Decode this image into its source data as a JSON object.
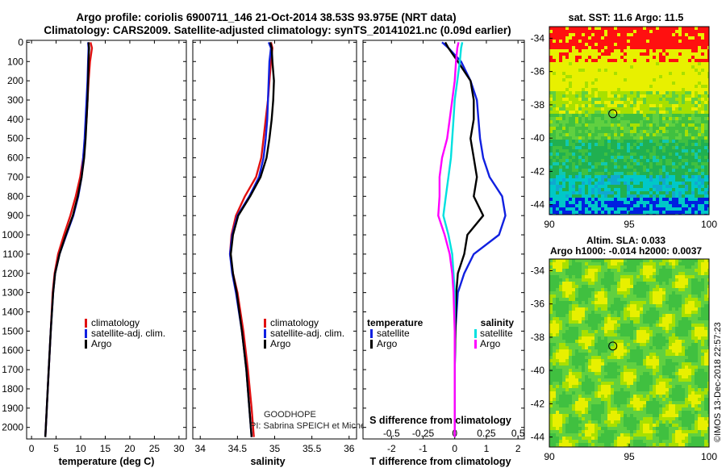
{
  "header": {
    "title_line1": "Argo profile: coriolis 6900711_146 21-Oct-2014 38.53S 93.975E (NRT data)",
    "title_line2": "Climatology: CARS2009. Satellite-adjusted climatology: synTS_20141021.nc (0.09d earlier)"
  },
  "colors": {
    "climatology": "#e01010",
    "satellite": "#1020e0",
    "argo": "#000000",
    "salinity_satellite": "#00e0e0",
    "salinity_argo": "#ff00ff"
  },
  "chart_data": [
    {
      "type": "line",
      "panel": "temperature",
      "xlabel": "temperature (deg C)",
      "ylabel": "",
      "xlim": [
        -1,
        31.5
      ],
      "ylim": [
        2060,
        -10
      ],
      "xticks": [
        "0",
        "5",
        "10",
        "15",
        "20",
        "25",
        "30"
      ],
      "yticks": [
        "0",
        "100",
        "200",
        "300",
        "400",
        "500",
        "600",
        "700",
        "800",
        "900",
        "1000",
        "1100",
        "1200",
        "1300",
        "1400",
        "1500",
        "1600",
        "1700",
        "1800",
        "1900",
        "2000"
      ],
      "depth": [
        0,
        30,
        100,
        200,
        300,
        400,
        500,
        600,
        700,
        800,
        900,
        1000,
        1100,
        1200,
        1300,
        1500,
        1700,
        1900,
        2050
      ],
      "series": [
        {
          "name": "climatology",
          "values": [
            12.0,
            12.3,
            11.9,
            11.6,
            11.4,
            11.2,
            10.9,
            10.5,
            9.9,
            9.0,
            7.9,
            6.6,
            5.4,
            4.7,
            4.3,
            3.9,
            3.5,
            3.1,
            2.8
          ]
        },
        {
          "name": "satellite-adj. clim.",
          "values": [
            11.5,
            11.6,
            11.5,
            11.4,
            11.2,
            11.0,
            10.8,
            10.5,
            10.2,
            9.5,
            8.5,
            7.1,
            5.7,
            4.8,
            4.4,
            3.9,
            3.5,
            3.1,
            2.8
          ]
        },
        {
          "name": "Argo",
          "values": [
            11.6,
            11.7,
            11.6,
            11.5,
            11.4,
            11.2,
            11.0,
            10.7,
            10.2,
            9.4,
            8.4,
            7.0,
            5.7,
            4.8,
            4.4,
            3.9,
            3.5,
            3.1,
            2.8
          ]
        }
      ],
      "legend": [
        "climatology",
        "satellite-adj. clim.",
        "Argo"
      ]
    },
    {
      "type": "line",
      "panel": "salinity",
      "xlabel": "salinity",
      "xlim": [
        33.9,
        36.1
      ],
      "ylim": [
        2060,
        -10
      ],
      "xticks": [
        "34",
        "34.5",
        "35",
        "35.5",
        "36"
      ],
      "depth": [
        0,
        30,
        100,
        200,
        300,
        400,
        500,
        600,
        700,
        800,
        900,
        1000,
        1100,
        1200,
        1300,
        1500,
        1700,
        1900,
        2050
      ],
      "series": [
        {
          "name": "climatology",
          "values": [
            34.95,
            34.97,
            34.95,
            34.93,
            34.91,
            34.88,
            34.85,
            34.82,
            34.75,
            34.6,
            34.48,
            34.42,
            34.4,
            34.44,
            34.5,
            34.58,
            34.64,
            34.69,
            34.72
          ]
        },
        {
          "name": "satellite-adj. clim.",
          "values": [
            34.92,
            34.95,
            34.93,
            34.92,
            34.91,
            34.9,
            34.88,
            34.85,
            34.79,
            34.66,
            34.5,
            34.43,
            34.4,
            34.43,
            34.48,
            34.56,
            34.62,
            34.66,
            34.69
          ]
        },
        {
          "name": "Argo",
          "values": [
            34.94,
            34.96,
            34.97,
            34.99,
            34.98,
            34.96,
            34.93,
            34.89,
            34.81,
            34.67,
            34.51,
            34.44,
            34.41,
            34.44,
            34.49,
            34.56,
            34.62,
            34.66,
            34.69
          ]
        }
      ],
      "legend": [
        "climatology",
        "satellite-adj. clim.",
        "Argo"
      ],
      "annotation_line1": "GOODHOPE",
      "annotation_line2": "PI: Sabrina SPEICH et Michel ARHAN"
    },
    {
      "type": "line",
      "panel": "difference",
      "xlabel": "T difference from climatology",
      "top_xlabel": "S difference from climatology",
      "xlim": [
        -2.9,
        2.2
      ],
      "ylim": [
        2060,
        -10
      ],
      "xticks": [
        "-2",
        "-1",
        "0",
        "1",
        "2"
      ],
      "top_xticks": [
        "-0.5",
        "-0.25",
        "0",
        "0.25",
        "0.5"
      ],
      "depth": [
        0,
        30,
        100,
        200,
        300,
        400,
        500,
        600,
        700,
        800,
        900,
        1000,
        1100,
        1200,
        1300,
        1500,
        1700,
        1900,
        2050
      ],
      "series": [
        {
          "name": "T satellite",
          "values": [
            -0.4,
            -0.2,
            0.2,
            0.5,
            0.7,
            0.75,
            0.8,
            0.9,
            1.1,
            1.5,
            1.6,
            1.4,
            0.6,
            0.3,
            0.1,
            0.02,
            0.0,
            0.0,
            0.0
          ]
        },
        {
          "name": "T Argo",
          "values": [
            -0.3,
            -0.2,
            0.1,
            0.5,
            0.6,
            0.6,
            0.5,
            0.6,
            0.7,
            0.6,
            0.9,
            0.4,
            0.3,
            0.1,
            0.05,
            0.02,
            0.0,
            0.0,
            0.0
          ]
        },
        {
          "name": "S satellite",
          "values": [
            0.06,
            0.05,
            0.04,
            0.02,
            0.0,
            -0.01,
            -0.02,
            -0.03,
            -0.05,
            -0.07,
            -0.09,
            -0.05,
            -0.02,
            -0.01,
            0.0,
            0.0,
            0.0,
            0.0,
            0.0
          ]
        },
        {
          "name": "S Argo",
          "values": [
            0.03,
            0.02,
            0.01,
            0.0,
            -0.02,
            -0.04,
            -0.06,
            -0.1,
            -0.12,
            -0.12,
            -0.13,
            -0.08,
            -0.04,
            -0.02,
            -0.01,
            0.0,
            0.0,
            0.0,
            0.0
          ]
        }
      ],
      "legend_temperature_title": "temperature",
      "legend_salinity_title": "salinity",
      "legend_temperature": [
        "satellite",
        "Argo"
      ],
      "legend_salinity": [
        "satellite",
        "Argo"
      ]
    },
    {
      "type": "heatmap",
      "panel": "sst-map",
      "title": "sat. SST: 11.6 Argo: 11.5",
      "xlim": [
        90,
        100
      ],
      "ylim": [
        -44.6,
        -33.3
      ],
      "xticks": [
        "90",
        "95",
        "100"
      ],
      "yticks": [
        "-34",
        "-36",
        "-38",
        "-40",
        "-42",
        "-44"
      ],
      "marker": {
        "lon": 93.975,
        "lat": -38.53
      }
    },
    {
      "type": "heatmap",
      "panel": "sla-map",
      "title_line1": "Altim. SLA: 0.033",
      "title_line2": "Argo h1000: -0.014 h2000: 0.0037",
      "xlim": [
        90,
        100
      ],
      "ylim": [
        -44.6,
        -33.3
      ],
      "xticks": [
        "90",
        "95",
        "100"
      ],
      "yticks": [
        "-34",
        "-36",
        "-38",
        "-40",
        "-42",
        "-44"
      ],
      "marker": {
        "lon": 93.975,
        "lat": -38.53
      }
    }
  ],
  "footer": {
    "credit": "©IMOS 13-Dec-2018 22:57:23"
  }
}
